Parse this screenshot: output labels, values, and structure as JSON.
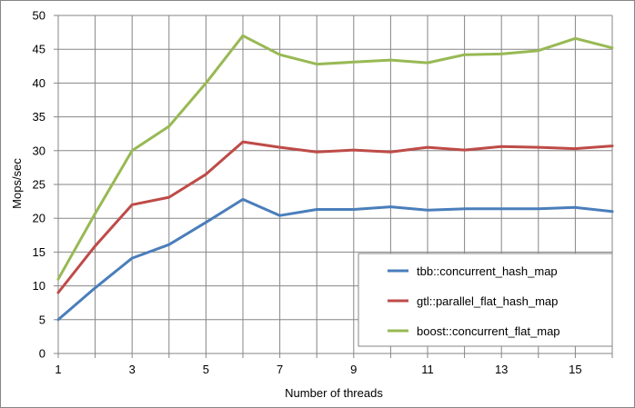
{
  "chart_data": {
    "type": "line",
    "title": "",
    "xlabel": "Number of threads",
    "ylabel": "Mops/sec",
    "xlim": [
      1,
      16
    ],
    "ylim": [
      0,
      50
    ],
    "x_ticks": [
      "1",
      "3",
      "5",
      "7",
      "9",
      "11",
      "13",
      "15"
    ],
    "y_ticks": [
      "0",
      "5",
      "10",
      "15",
      "20",
      "25",
      "30",
      "35",
      "40",
      "45",
      "50"
    ],
    "grid": true,
    "legend_position": "bottom-right",
    "x": [
      1,
      2,
      3,
      4,
      5,
      6,
      7,
      8,
      9,
      10,
      11,
      12,
      13,
      14,
      15,
      16
    ],
    "series": [
      {
        "name": "tbb::concurrent_hash_map",
        "color": "#4a7ebb",
        "values": [
          5.0,
          9.7,
          14.1,
          16.1,
          19.4,
          22.8,
          20.4,
          21.3,
          21.3,
          21.7,
          21.2,
          21.4,
          21.4,
          21.4,
          21.6,
          21.0
        ]
      },
      {
        "name": "gtl::parallel_flat_hash_map",
        "color": "#be4b48",
        "values": [
          9.0,
          15.9,
          22.0,
          23.1,
          26.5,
          31.3,
          30.5,
          29.8,
          30.1,
          29.8,
          30.5,
          30.1,
          30.6,
          30.5,
          30.3,
          30.7
        ]
      },
      {
        "name": "boost::concurrent_flat_map",
        "color": "#98b954",
        "values": [
          11.0,
          20.7,
          30.0,
          33.6,
          40.0,
          47.0,
          44.2,
          42.8,
          43.1,
          43.4,
          43.0,
          44.2,
          44.3,
          44.8,
          46.6,
          45.2
        ]
      }
    ]
  }
}
